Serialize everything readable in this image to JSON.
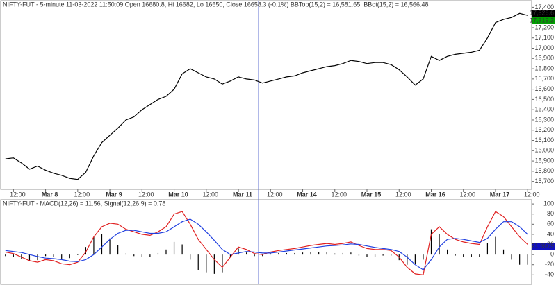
{
  "chart_data": [
    {
      "type": "line",
      "title": "NIFTY-FUT - 5-minute 11-03-2022 11:50:09 Open 16680.8, Hi 16682, Lo 16650, Close 16658.3 (-0.1%) BBTop(15,2) = 16,581.65, BBot(15,2) = 16,566.48",
      "categories": [
        null,
        "12:00",
        null,
        null,
        null,
        "Mar 8",
        null,
        null,
        null,
        "12:00",
        null,
        null,
        null,
        "Mar 9",
        null,
        null,
        null,
        "12:00",
        null,
        null,
        null,
        "Mar 10",
        null,
        null,
        null,
        "12:00",
        null,
        null,
        null,
        "Mar 11",
        null,
        null,
        null,
        "12:00",
        null,
        null,
        null,
        "Mar 14",
        null,
        null,
        null,
        "12:00",
        null,
        null,
        null,
        "Mar 15",
        null,
        null,
        null,
        "12:00",
        null,
        null,
        null,
        "Mar 16",
        null,
        null,
        null,
        "12:00",
        null,
        null,
        null,
        "Mar 17",
        null,
        null,
        null,
        "12:00"
      ],
      "series": [
        {
          "color": "#000000",
          "values": [
            15920,
            15930,
            15880,
            15820,
            15850,
            15810,
            15780,
            15760,
            15730,
            15720,
            15790,
            15950,
            16080,
            16150,
            16220,
            16300,
            16330,
            16400,
            16450,
            16500,
            16530,
            16600,
            16750,
            16800,
            16760,
            16720,
            16700,
            16650,
            16680,
            16720,
            16700,
            16690,
            16660,
            16680,
            16700,
            16720,
            16730,
            16760,
            16780,
            16800,
            16820,
            16830,
            16850,
            16880,
            16870,
            16850,
            16860,
            16860,
            16840,
            16790,
            16720,
            16640,
            16700,
            16920,
            16880,
            16920,
            16940,
            16950,
            16960,
            16980,
            17100,
            17250,
            17280,
            17300,
            17340,
            17320
          ]
        }
      ],
      "ylim": [
        15630,
        17450
      ],
      "yticks": [
        {
          "value": 15700,
          "label": "15,700"
        },
        {
          "value": 15800,
          "label": "15,800"
        },
        {
          "value": 15900,
          "label": "15,900"
        },
        {
          "value": 16000,
          "label": "16,000"
        },
        {
          "value": 16100,
          "label": "16,100"
        },
        {
          "value": 16200,
          "label": "16,200"
        },
        {
          "value": 16300,
          "label": "16,300"
        },
        {
          "value": 16400,
          "label": "16,400"
        },
        {
          "value": 16500,
          "label": "16,500"
        },
        {
          "value": 16600,
          "label": "16,600"
        },
        {
          "value": 16700,
          "label": "16,700"
        },
        {
          "value": 16800,
          "label": "16,800"
        },
        {
          "value": 16900,
          "label": "16,900"
        },
        {
          "value": 17000,
          "label": "17,000"
        },
        {
          "value": 17100,
          "label": "17,100"
        },
        {
          "value": 17200,
          "label": "17,200"
        },
        {
          "value": 17300,
          "label": "17,300"
        },
        {
          "value": 17400,
          "label": "17,400"
        }
      ],
      "price_labels": [
        {
          "text": "17,326.6",
          "color": "#000000"
        },
        {
          "text": "17,319.3",
          "color": "#00a000"
        }
      ]
    },
    {
      "type": "line",
      "title": "NIFTY-FUT - MACD(12,26) = 11.56, Signal(12,26,9) = 0.78",
      "series": [
        {
          "kind": "bar",
          "color": "#000000",
          "values": [
            -3,
            -4,
            -9,
            -12,
            -11,
            -3,
            -4,
            -8,
            -7,
            -1,
            15,
            35,
            40,
            32,
            18,
            2,
            -3,
            -5,
            -4,
            3,
            10,
            25,
            20,
            -10,
            -30,
            -35,
            -38,
            -35,
            -5,
            12,
            4,
            -3,
            -3,
            2,
            3,
            3,
            3,
            4,
            5,
            5,
            5,
            2,
            3,
            4,
            -2,
            -5,
            -4,
            -2,
            -2,
            -11,
            -20,
            -18,
            -10,
            50,
            40,
            10,
            -2,
            -5,
            -5,
            -4,
            23,
            35,
            10,
            -10,
            -20,
            -20
          ]
        },
        {
          "color": "#e02020",
          "values": [
            5,
            2,
            -5,
            -12,
            -15,
            -10,
            -12,
            -18,
            -20,
            -15,
            5,
            35,
            55,
            62,
            60,
            50,
            45,
            40,
            38,
            45,
            55,
            80,
            85,
            60,
            30,
            10,
            -10,
            -25,
            -5,
            15,
            10,
            2,
            0,
            5,
            8,
            10,
            12,
            15,
            18,
            20,
            22,
            20,
            22,
            25,
            18,
            12,
            10,
            10,
            8,
            -5,
            -25,
            -38,
            -40,
            40,
            55,
            40,
            30,
            25,
            22,
            20,
            55,
            85,
            75,
            55,
            35,
            20
          ]
        },
        {
          "color": "#2040e0",
          "values": [
            8,
            6,
            4,
            0,
            -4,
            -7,
            -8,
            -10,
            -13,
            -14,
            -10,
            0,
            15,
            30,
            42,
            48,
            48,
            45,
            42,
            42,
            45,
            55,
            65,
            70,
            60,
            45,
            28,
            10,
            0,
            3,
            6,
            5,
            3,
            3,
            5,
            7,
            9,
            11,
            13,
            15,
            17,
            18,
            19,
            21,
            20,
            17,
            14,
            12,
            10,
            6,
            -5,
            -20,
            -30,
            -10,
            15,
            30,
            32,
            30,
            27,
            24,
            32,
            50,
            65,
            65,
            55,
            40
          ]
        }
      ],
      "ylim": [
        -56,
        107
      ],
      "yticks": [
        -40,
        -20,
        0,
        20,
        40,
        60,
        80,
        100
      ],
      "price_labels": [
        {
          "text": "21.9609",
          "color": "#1010c0"
        }
      ]
    }
  ]
}
